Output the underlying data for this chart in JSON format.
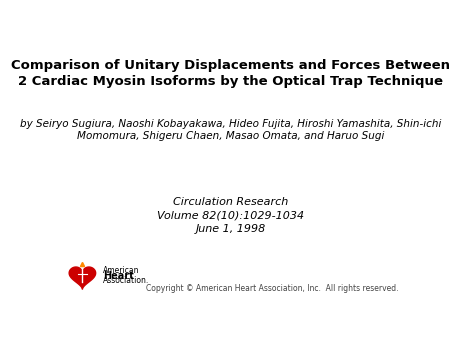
{
  "title_line1": "Comparison of Unitary Displacements and Forces Between",
  "title_line2": "2 Cardiac Myosin Isoforms by the Optical Trap Technique",
  "authors_line1": "by Seiryo Sugiura, Naoshi Kobayakawa, Hideo Fujita, Hiroshi Yamashita, Shin-ichi",
  "authors_line2": "Momomura, Shigeru Chaen, Masao Omata, and Haruo Sugi",
  "journal_line1": "Circulation Research",
  "journal_line2": "Volume 82(10):1029-1034",
  "journal_line3": "June 1, 1998",
  "copyright": "Copyright © American Heart Association, Inc.  All rights reserved.",
  "aha_text1": "American",
  "aha_text2": "Heart",
  "aha_text3": "Association.",
  "background_color": "#ffffff",
  "title_color": "#000000",
  "author_color": "#000000",
  "journal_color": "#000000",
  "title_fontsize": 9.5,
  "author_fontsize": 7.5,
  "journal_fontsize": 8.0,
  "copyright_fontsize": 5.5,
  "aha_fontsize": 5.5,
  "heart_color": "#cc0000",
  "torch_color": "#ffffff"
}
